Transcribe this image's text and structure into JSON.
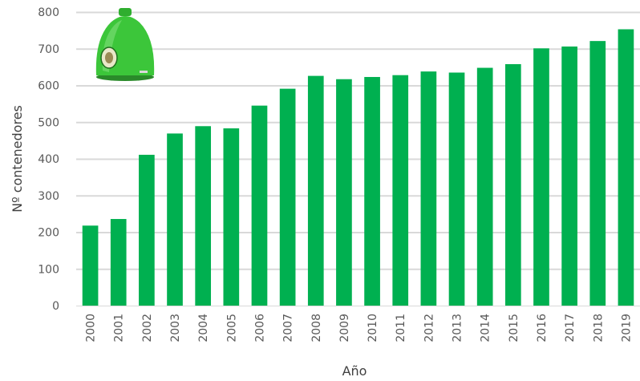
{
  "chart_data": {
    "type": "bar",
    "title": "",
    "xlabel": "Año",
    "ylabel": "Nº contenedores",
    "categories": [
      "2000",
      "2001",
      "2002",
      "2003",
      "2004",
      "2005",
      "2006",
      "2007",
      "2008",
      "2009",
      "2010",
      "2011",
      "2012",
      "2013",
      "2014",
      "2015",
      "2016",
      "2017",
      "2018",
      "2019"
    ],
    "values": [
      218,
      236,
      411,
      469,
      489,
      483,
      545,
      591,
      626,
      617,
      623,
      628,
      638,
      635,
      648,
      658,
      701,
      706,
      721,
      753
    ],
    "ylim": [
      0,
      800
    ],
    "yticks": [
      "0",
      "100",
      "200",
      "300",
      "400",
      "500",
      "600",
      "700",
      "800"
    ],
    "grid": true,
    "legend": "none",
    "colors": {
      "bar": "#00b050",
      "grid": "#d9d9d9",
      "icon": "#39c03a"
    },
    "icon": "green-glass-recycling-container-icon"
  }
}
